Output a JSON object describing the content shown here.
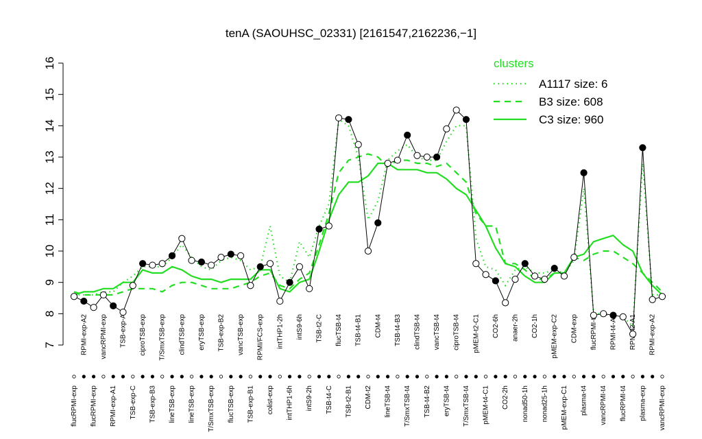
{
  "chart_data": {
    "type": "line",
    "title": "tenA (SAOUHSC_02331) [2161547,2162236,−1]",
    "categories": [
      "flucRPMI-exp",
      "RPMI-exp-A2",
      "flucRPMI-exp",
      "vancRPMI-exp",
      "RPMI-exp-A1",
      "TSB-exp-A",
      "TSB-exp-C",
      "ciproTSB-exp",
      "TSB-exp-B3",
      "T/SmxTSB-exp",
      "lineTSB-exp",
      "clindTSB-exp",
      "lineTSB-exp",
      "eryTSB-exp",
      "T/SmxTSB-exp",
      "TSB-exp-B2",
      "flucTSB-exp",
      "vancTSB-exp",
      "TSB-exp-B1",
      "RPMI/FCS-exp",
      "colist-exp",
      "intTHP1-2h",
      "intTHP1-6h",
      "intS9-6h",
      "intS9-2h",
      "TSB-t2-C",
      "TSB-t4-C",
      "flucTSB-t4",
      "TSB-t2-B1",
      "TSB-t4-B1",
      "CDM-t2",
      "CDM-t4",
      "lineTSB-t4",
      "TSB-t4-B3",
      "T/SmxTSB-t4",
      "clindTSB-t4",
      "TSB-t4-B2",
      "vancTSB-t4",
      "eryTSB-t4",
      "ciproTSB-t4",
      "T/SmxTSB-t4",
      "pMEM-t2-C1",
      "pMEM-t4-C1",
      "CO2-6h",
      "CO2-2h",
      "anaer-2h",
      "nonad50-1h",
      "CO2-1h",
      "nonad25-1h",
      "pMEM-exp-C2",
      "pMEM-exp-C1",
      "CDM-exp",
      "plasma-t4",
      "flucRPMI-t4",
      "vancRPMI-t4",
      "RPMI-t4-A2",
      "flucRPMI-t4",
      "RPMI-t2-A1",
      "plasma-exp",
      "RPMI-exp-A2",
      "vancRPMI-exp"
    ],
    "values": [
      8.55,
      8.4,
      8.2,
      8.6,
      8.25,
      8.05,
      8.9,
      9.6,
      9.55,
      9.6,
      9.85,
      10.4,
      9.7,
      9.65,
      9.55,
      9.8,
      9.9,
      9.85,
      8.9,
      9.5,
      9.6,
      8.4,
      9.0,
      9.5,
      8.8,
      10.7,
      10.8,
      14.25,
      14.2,
      13.4,
      10.0,
      10.9,
      12.8,
      12.9,
      13.7,
      13.05,
      13.0,
      13.0,
      13.9,
      14.5,
      14.2,
      9.6,
      9.25,
      9.05,
      8.35,
      9.1,
      9.6,
      9.2,
      9.1,
      9.45,
      9.2,
      9.8,
      12.5,
      7.95,
      8.0,
      7.95,
      7.9,
      7.35,
      13.3,
      8.45,
      8.55
    ],
    "color": "#000000",
    "legend_title": "clusters",
    "legend": "topright",
    "series": [
      {
        "name": "A1117 size: 6",
        "color": "#22dd22",
        "dash": "dotted",
        "values": [
          8.6,
          8.6,
          8.6,
          8.7,
          8.7,
          9.0,
          9.2,
          9.5,
          9.5,
          9.5,
          9.8,
          10.2,
          9.8,
          9.5,
          9.4,
          9.7,
          9.8,
          9.7,
          9.4,
          9.5,
          10.8,
          9.2,
          9.0,
          10.3,
          9.8,
          10.8,
          11.5,
          14.2,
          14.0,
          13.0,
          11.0,
          11.6,
          12.9,
          13.2,
          13.4,
          13.0,
          12.9,
          12.9,
          13.5,
          14.0,
          14.0,
          10.4,
          9.5,
          9.4,
          8.9,
          9.4,
          9.5,
          9.3,
          9.3,
          9.4,
          9.3,
          9.7,
          12.0,
          8.0,
          8.0,
          7.9,
          7.9,
          7.6,
          12.8,
          8.6,
          8.6
        ]
      },
      {
        "name": "B3 size: 608",
        "color": "#22dd22",
        "dash": "dashed",
        "values": [
          8.7,
          8.6,
          8.6,
          8.6,
          8.6,
          8.7,
          8.8,
          8.8,
          8.8,
          8.7,
          8.9,
          9.0,
          9.0,
          8.9,
          8.8,
          8.8,
          8.8,
          8.9,
          9.0,
          9.2,
          9.3,
          8.9,
          8.8,
          9.1,
          9.3,
          10.2,
          11.2,
          12.5,
          12.9,
          13.0,
          13.1,
          13.0,
          12.7,
          12.9,
          12.9,
          12.8,
          12.8,
          12.7,
          12.8,
          12.5,
          12.2,
          11.2,
          10.8,
          10.8,
          9.6,
          9.6,
          9.4,
          9.1,
          9.1,
          9.3,
          9.3,
          9.8,
          9.7,
          9.9,
          10.0,
          10.0,
          9.8,
          9.6,
          9.3,
          9.0,
          8.7
        ]
      },
      {
        "name": "C3 size: 960",
        "color": "#22dd22",
        "dash": "solid",
        "values": [
          8.6,
          8.7,
          8.7,
          8.8,
          8.8,
          9.0,
          9.0,
          9.4,
          9.3,
          9.3,
          9.5,
          9.4,
          9.2,
          9.1,
          9.1,
          9.0,
          9.1,
          9.1,
          9.1,
          9.4,
          9.4,
          8.8,
          8.7,
          9.0,
          9.1,
          10.0,
          11.0,
          11.8,
          12.2,
          12.2,
          12.4,
          12.8,
          12.8,
          12.6,
          12.6,
          12.6,
          12.5,
          12.5,
          12.3,
          12.0,
          11.8,
          11.3,
          10.8,
          10.1,
          9.6,
          9.5,
          9.2,
          9.0,
          9.0,
          9.3,
          9.3,
          9.8,
          9.9,
          10.3,
          10.4,
          10.5,
          10.2,
          10.0,
          9.3,
          8.9,
          8.6
        ]
      }
    ],
    "ylim": [
      7,
      16
    ],
    "yticks": [
      7,
      8,
      9,
      10,
      11,
      12,
      13,
      14,
      15,
      16
    ]
  }
}
